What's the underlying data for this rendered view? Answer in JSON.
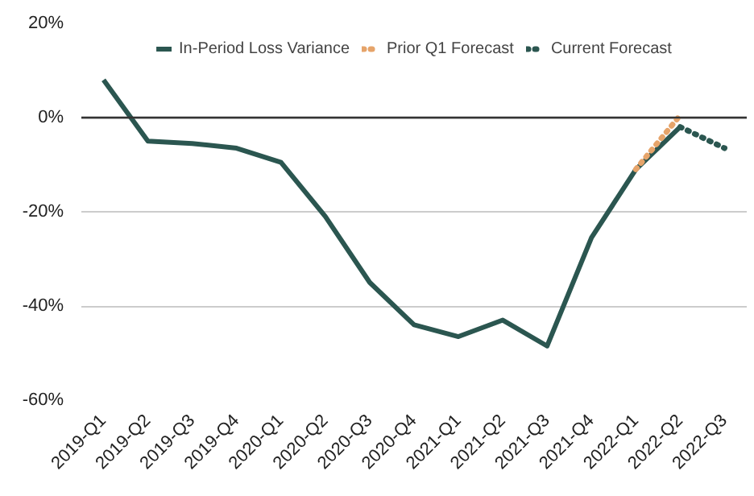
{
  "chart_data": {
    "type": "line",
    "categories": [
      "2019-Q1",
      "2019-Q2",
      "2019-Q3",
      "2019-Q4",
      "2020-Q1",
      "2020-Q2",
      "2020-Q3",
      "2020-Q4",
      "2021-Q1",
      "2021-Q2",
      "2021-Q3",
      "2021-Q4",
      "2022-Q1",
      "2022-Q2",
      "2022-Q3"
    ],
    "series": [
      {
        "name": "In-Period Loss Variance",
        "color": "#2b5650",
        "line_style": "solid",
        "values": [
          8,
          -5,
          -5.5,
          -6.5,
          -9.5,
          -21,
          -35,
          -44,
          -46.5,
          -43,
          -48.5,
          -25.5,
          -11,
          -2,
          null
        ]
      },
      {
        "name": "Prior Q1 Forecast",
        "color": "#e6a46a",
        "line_style": "dotted",
        "values": [
          null,
          null,
          null,
          null,
          null,
          null,
          null,
          null,
          null,
          null,
          null,
          null,
          -11,
          0.5,
          null
        ]
      },
      {
        "name": "Current Forecast",
        "color": "#2b5650",
        "line_style": "dotted",
        "values": [
          null,
          null,
          null,
          null,
          null,
          null,
          null,
          null,
          null,
          null,
          null,
          null,
          null,
          -2,
          -6.5
        ]
      }
    ],
    "ylim": [
      -60,
      20
    ],
    "yticks": [
      {
        "value": 20,
        "label": "20%"
      },
      {
        "value": 0,
        "label": "0%"
      },
      {
        "value": -20,
        "label": "-20%"
      },
      {
        "value": -40,
        "label": "-40%"
      },
      {
        "value": -60,
        "label": "-60%"
      }
    ],
    "ref_lines": [
      {
        "axis": "y",
        "value": 0,
        "color": "#333333"
      }
    ],
    "grid": "y",
    "legend": "top"
  }
}
